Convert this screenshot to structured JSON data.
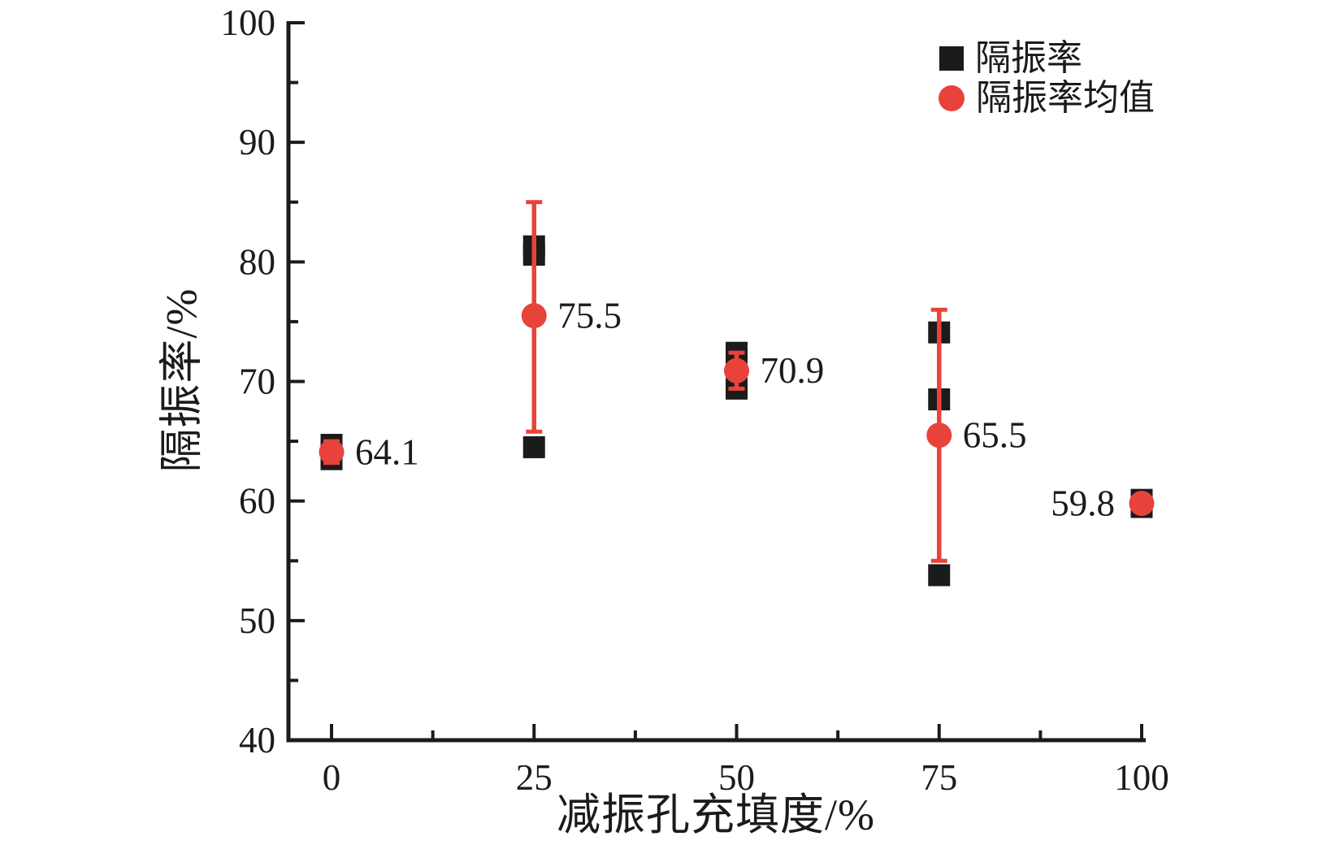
{
  "figure": {
    "background": "#ffffff",
    "text_color": "#1b1b1b"
  },
  "legend": {
    "position": "top-right-inside",
    "items": [
      {
        "swatch": "black-square",
        "label": "隔振率"
      },
      {
        "swatch": "red-circle",
        "label": "隔振率均值"
      }
    ]
  },
  "chart_data": {
    "type": "scatter",
    "title": "",
    "xlabel": "减振孔充填度/%",
    "ylabel": "隔振率/%",
    "xlim": [
      -5.3,
      100.5
    ],
    "ylim": [
      40,
      100
    ],
    "x_ticks": [
      0,
      25,
      50,
      75,
      100
    ],
    "x_minor_ticks": [
      12.5,
      37.5,
      62.5,
      87.5
    ],
    "y_ticks": [
      40,
      50,
      60,
      70,
      80,
      90,
      100
    ],
    "y_minor_ticks": [
      45,
      55,
      65,
      75,
      85,
      95
    ],
    "grid": false,
    "axis_style": "L-frame, ticks pointing inward",
    "colors": {
      "points": "#1b1b1b",
      "mean": "#e8433b"
    },
    "series": [
      {
        "name": "隔振率",
        "marker": "square",
        "color": "#1b1b1b",
        "points": [
          {
            "x": 0,
            "y": 64.7
          },
          {
            "x": 0,
            "y": 63.5
          },
          {
            "x": 25,
            "y": 81.3
          },
          {
            "x": 25,
            "y": 80.6
          },
          {
            "x": 25,
            "y": 64.5
          },
          {
            "x": 50,
            "y": 72.4
          },
          {
            "x": 50,
            "y": 69.4
          },
          {
            "x": 75,
            "y": 74.1
          },
          {
            "x": 75,
            "y": 68.5
          },
          {
            "x": 75,
            "y": 53.8
          },
          {
            "x": 100,
            "y": 60.1
          },
          {
            "x": 100,
            "y": 59.5
          }
        ]
      },
      {
        "name": "隔振率均值",
        "marker": "circle",
        "color": "#e8433b",
        "points": [
          {
            "x": 0,
            "y": 64.1,
            "err_low": 0.9,
            "err_high": 0.9,
            "label": "64.1",
            "label_side": "right"
          },
          {
            "x": 25,
            "y": 75.5,
            "err_low": 9.7,
            "err_high": 9.5,
            "label": "75.5",
            "label_side": "right"
          },
          {
            "x": 50,
            "y": 70.9,
            "err_low": 1.5,
            "err_high": 1.5,
            "label": "70.9",
            "label_side": "right"
          },
          {
            "x": 75,
            "y": 65.5,
            "err_low": 10.5,
            "err_high": 10.5,
            "label": "65.5",
            "label_side": "right"
          },
          {
            "x": 100,
            "y": 59.8,
            "err_low": 0.3,
            "err_high": 0.3,
            "label": "59.8",
            "label_side": "left"
          }
        ]
      }
    ]
  }
}
